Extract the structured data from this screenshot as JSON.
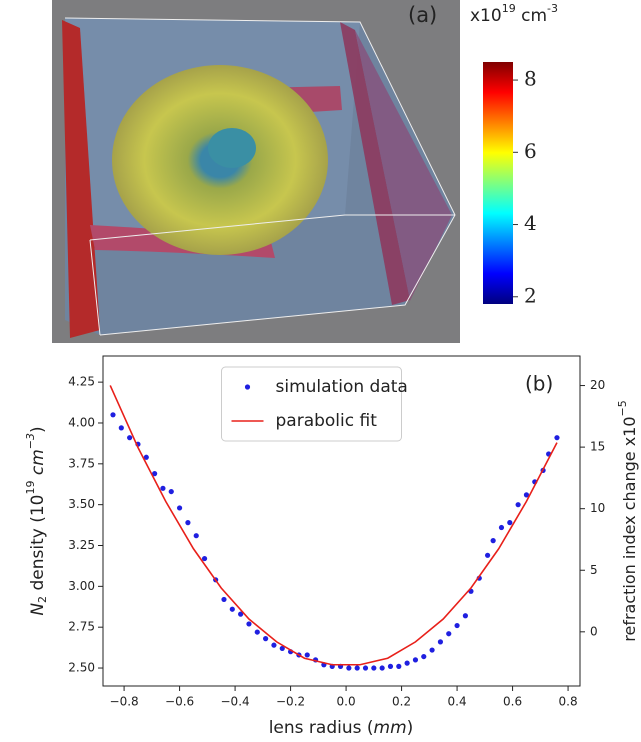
{
  "chart_data": [
    {
      "type": "colorbar",
      "annotation": "(a)",
      "label_parts": [
        "x10",
        "19",
        " cm",
        "-3"
      ],
      "colormap": "jet",
      "ylim": [
        1.8,
        8.5
      ],
      "yticks": [
        2,
        4,
        6,
        8
      ]
    },
    {
      "type": "scatter",
      "annotation": "(b)",
      "legend": "upper center",
      "xlabel_parts": [
        "lens radius (",
        "mm",
        ")"
      ],
      "ylabel_parts": [
        "N",
        "2",
        " density (10",
        "19",
        " ",
        "cm",
        "−3",
        ")"
      ],
      "y2label_parts": [
        "refraction index change x10",
        "−5"
      ],
      "xlim": [
        -0.876,
        0.843
      ],
      "ylim": [
        2.39,
        4.41
      ],
      "y2lim": [
        -4.4,
        22.4
      ],
      "xticks": [
        {
          "value": -0.8,
          "label": "−0.8"
        },
        {
          "value": -0.6,
          "label": "−0.6"
        },
        {
          "value": -0.4,
          "label": "−0.4"
        },
        {
          "value": -0.2,
          "label": "−0.2"
        },
        {
          "value": 0,
          "label": "0.0"
        },
        {
          "value": 0.2,
          "label": "0.2"
        },
        {
          "value": 0.4,
          "label": "0.4"
        },
        {
          "value": 0.6,
          "label": "0.6"
        },
        {
          "value": 0.8,
          "label": "0.8"
        }
      ],
      "yticks": [
        {
          "value": 2.5,
          "label": "2.50"
        },
        {
          "value": 2.75,
          "label": "2.75"
        },
        {
          "value": 3,
          "label": "3.00"
        },
        {
          "value": 3.25,
          "label": "3.25"
        },
        {
          "value": 3.5,
          "label": "3.50"
        },
        {
          "value": 3.75,
          "label": "3.75"
        },
        {
          "value": 4,
          "label": "4.00"
        },
        {
          "value": 4.25,
          "label": "4.25"
        }
      ],
      "y2ticks": [
        0,
        5,
        10,
        15,
        20
      ],
      "series": [
        {
          "name": "simulation data",
          "style": "points",
          "color": "#1f1fe0",
          "x": [
            -0.84,
            -0.81,
            -0.78,
            -0.75,
            -0.72,
            -0.69,
            -0.66,
            -0.63,
            -0.6,
            -0.57,
            -0.54,
            -0.51,
            -0.47,
            -0.44,
            -0.41,
            -0.38,
            -0.35,
            -0.32,
            -0.29,
            -0.26,
            -0.23,
            -0.2,
            -0.17,
            -0.14,
            -0.11,
            -0.08,
            -0.05,
            -0.02,
            0.01,
            0.04,
            0.07,
            0.1,
            0.13,
            0.16,
            0.19,
            0.22,
            0.25,
            0.28,
            0.31,
            0.34,
            0.37,
            0.4,
            0.43,
            0.45,
            0.48,
            0.51,
            0.53,
            0.56,
            0.59,
            0.62,
            0.65,
            0.68,
            0.71,
            0.73,
            0.76
          ],
          "values": [
            4.05,
            3.97,
            3.91,
            3.87,
            3.79,
            3.69,
            3.6,
            3.58,
            3.48,
            3.39,
            3.31,
            3.17,
            3.04,
            2.92,
            2.86,
            2.83,
            2.77,
            2.72,
            2.68,
            2.64,
            2.62,
            2.6,
            2.58,
            2.58,
            2.55,
            2.52,
            2.51,
            2.51,
            2.5,
            2.5,
            2.5,
            2.5,
            2.5,
            2.51,
            2.51,
            2.53,
            2.55,
            2.57,
            2.61,
            2.66,
            2.71,
            2.76,
            2.82,
            2.97,
            3.05,
            3.19,
            3.28,
            3.36,
            3.39,
            3.5,
            3.56,
            3.64,
            3.71,
            3.81,
            3.91
          ]
        },
        {
          "name": "parabolic fit",
          "style": "line",
          "color": "#e8201a",
          "x": [
            -0.85,
            -0.75,
            -0.65,
            -0.55,
            -0.45,
            -0.35,
            -0.25,
            -0.15,
            -0.05,
            0.05,
            0.15,
            0.25,
            0.35,
            0.45,
            0.55,
            0.65,
            0.76
          ],
          "values": [
            4.23,
            3.85,
            3.52,
            3.23,
            2.99,
            2.8,
            2.66,
            2.56,
            2.52,
            2.52,
            2.56,
            2.66,
            2.8,
            2.99,
            3.23,
            3.52,
            3.88
          ]
        }
      ]
    }
  ]
}
